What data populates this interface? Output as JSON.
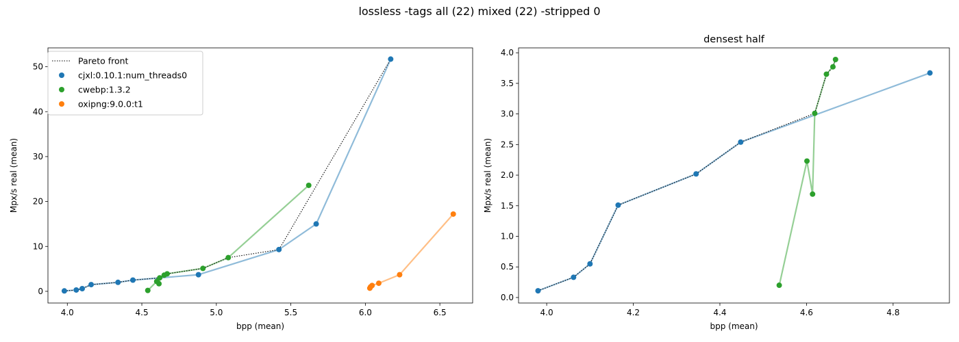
{
  "figure": {
    "title": "lossless -tags all (22) mixed (22) -stripped 0"
  },
  "colors": {
    "cjxl": "#1f77b4",
    "cwebp": "#2ca02c",
    "oxipng": "#ff7f0e",
    "pareto": "#000000"
  },
  "chart_data": [
    {
      "type": "scatter",
      "title": "",
      "xlabel": "bpp (mean)",
      "ylabel": "Mpx/s real (mean)",
      "xlim": [
        3.87,
        6.72
      ],
      "ylim": [
        -2.6,
        54.2
      ],
      "xticks": [
        4.0,
        4.5,
        5.0,
        5.5,
        6.0,
        6.5
      ],
      "xtick_labels": [
        "4.0",
        "4.5",
        "5.0",
        "5.5",
        "6.0",
        "6.5"
      ],
      "yticks": [
        0,
        10,
        20,
        30,
        40,
        50
      ],
      "ytick_labels": [
        "0",
        "10",
        "20",
        "30",
        "40",
        "50"
      ],
      "legend": {
        "placement": "top-left",
        "entries": [
          {
            "label": "Pareto front",
            "kind": "dotted-line"
          },
          {
            "label": "cjxl:0.10.1:num_threads0",
            "kind": "marker",
            "color_key": "cjxl"
          },
          {
            "label": "cwebp:1.3.2",
            "kind": "marker",
            "color_key": "cwebp"
          },
          {
            "label": "oxipng:9.0.0:t1",
            "kind": "marker",
            "color_key": "oxipng"
          }
        ]
      },
      "series": [
        {
          "name": "cjxl:0.10.1:num_threads0",
          "color_key": "cjxl",
          "x": [
            3.98,
            4.06,
            4.1,
            4.16,
            4.34,
            4.44,
            4.88,
            5.42,
            5.67,
            6.17
          ],
          "y": [
            0.1,
            0.3,
            0.6,
            1.5,
            2.0,
            2.5,
            3.7,
            9.3,
            15.0,
            51.7
          ]
        },
        {
          "name": "cwebp:1.3.2",
          "color_key": "cwebp",
          "x": [
            4.54,
            4.6,
            4.615,
            4.62,
            4.65,
            4.67,
            4.91,
            5.08,
            5.62
          ],
          "y": [
            0.2,
            2.2,
            1.7,
            3.0,
            3.6,
            3.9,
            5.1,
            7.5,
            23.6
          ]
        },
        {
          "name": "oxipng:9.0.0:t1",
          "color_key": "oxipng",
          "x": [
            6.03,
            6.035,
            6.045,
            6.09,
            6.23,
            6.59
          ],
          "y": [
            0.7,
            1.0,
            1.3,
            1.8,
            3.7,
            17.2
          ]
        }
      ],
      "pareto": {
        "x": [
          3.98,
          4.06,
          4.1,
          4.16,
          4.34,
          4.44,
          4.62,
          4.65,
          4.67,
          4.91,
          5.08,
          5.42,
          6.17
        ],
        "y": [
          0.1,
          0.3,
          0.6,
          1.5,
          2.0,
          2.5,
          3.0,
          3.6,
          3.9,
          5.1,
          7.5,
          9.3,
          51.7
        ]
      }
    },
    {
      "type": "scatter",
      "title": "densest half",
      "xlabel": "bpp (mean)",
      "ylabel": "Mpx/s real (mean)",
      "xlim": [
        3.935,
        4.93
      ],
      "ylim": [
        -0.09,
        4.08
      ],
      "xticks": [
        4.0,
        4.2,
        4.4,
        4.6,
        4.8
      ],
      "xtick_labels": [
        "4.0",
        "4.2",
        "4.4",
        "4.6",
        "4.8"
      ],
      "yticks": [
        0.0,
        0.5,
        1.0,
        1.5,
        2.0,
        2.5,
        3.0,
        3.5,
        4.0
      ],
      "ytick_labels": [
        "0.0",
        "0.5",
        "1.0",
        "1.5",
        "2.0",
        "2.5",
        "3.0",
        "3.5",
        "4.0"
      ],
      "series": [
        {
          "name": "cjxl:0.10.1:num_threads0",
          "color_key": "cjxl",
          "x": [
            3.98,
            4.062,
            4.1,
            4.165,
            4.345,
            4.448,
            4.885
          ],
          "y": [
            0.11,
            0.33,
            0.55,
            1.51,
            2.02,
            2.54,
            3.67
          ]
        },
        {
          "name": "cwebp:1.3.2",
          "color_key": "cwebp",
          "x": [
            4.537,
            4.601,
            4.614,
            4.619,
            4.646,
            4.661,
            4.667
          ],
          "y": [
            0.2,
            2.23,
            1.69,
            3.01,
            3.65,
            3.77,
            3.89
          ]
        }
      ],
      "pareto": {
        "x": [
          3.98,
          4.062,
          4.1,
          4.165,
          4.345,
          4.448,
          4.619,
          4.646,
          4.661,
          4.667
        ],
        "y": [
          0.11,
          0.33,
          0.55,
          1.51,
          2.02,
          2.54,
          3.01,
          3.65,
          3.77,
          3.89
        ]
      }
    }
  ]
}
